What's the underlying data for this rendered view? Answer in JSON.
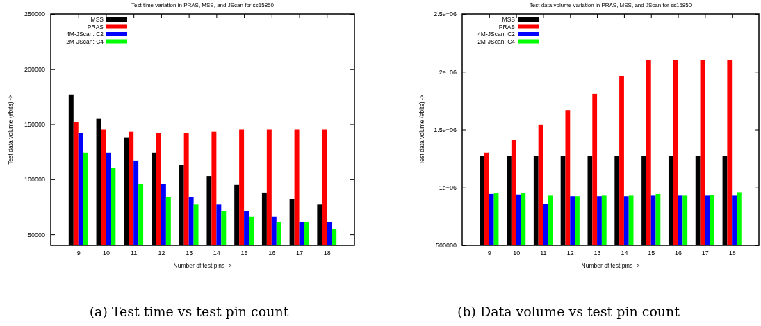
{
  "chart_data": [
    {
      "type": "bar",
      "title": "Test time variation in PRAS, MSS, and JScan for ss15850",
      "xlabel": "Number of test pins ->",
      "ylabel": "Test data volume (#bits) ->",
      "categories": [
        "9",
        "10",
        "11",
        "12",
        "13",
        "14",
        "15",
        "16",
        "17",
        "18"
      ],
      "ylim": [
        40000,
        250000
      ],
      "yticks": [
        50000,
        100000,
        150000,
        200000,
        250000
      ],
      "legend": "top left",
      "annotations": [
        "(a) Test time vs test pin count"
      ],
      "series": [
        {
          "name": "MSS",
          "color": "#000000",
          "values": [
            177000,
            155000,
            138000,
            124000,
            113000,
            103000,
            95000,
            88000,
            82000,
            77000
          ]
        },
        {
          "name": "PRAS",
          "color": "#ff0000",
          "values": [
            152000,
            145000,
            143000,
            142000,
            142000,
            143000,
            145000,
            145000,
            145000,
            145000
          ]
        },
        {
          "name": "4M-JScan: C2",
          "color": "#0000ff",
          "values": [
            142000,
            124000,
            117000,
            96000,
            84000,
            77000,
            71000,
            66000,
            61000,
            61000
          ]
        },
        {
          "name": "2M-JScan: C4",
          "color": "#00ff00",
          "values": [
            124000,
            110000,
            96000,
            84000,
            77000,
            71000,
            66000,
            61000,
            61000,
            55000
          ]
        }
      ]
    },
    {
      "type": "bar",
      "title": "Test data volume variation in PRAS, MSS, and JScan for ss15850",
      "xlabel": "Number of test pins ->",
      "ylabel": "Test data volume (#bits) ->",
      "categories": [
        "9",
        "10",
        "11",
        "12",
        "13",
        "14",
        "15",
        "16",
        "17",
        "18"
      ],
      "ylim": [
        500000,
        2500000
      ],
      "yticks": [
        500000,
        {
          "value": 1000000,
          "label": "1e+06"
        },
        {
          "value": 1500000,
          "label": "1.5e+06"
        },
        {
          "value": 2000000,
          "label": "2e+06"
        },
        {
          "value": 2500000,
          "label": "2.5e+06"
        }
      ],
      "legend": "top left",
      "annotations": [
        "(b) Data volume vs test pin count"
      ],
      "series": [
        {
          "name": "MSS",
          "color": "#000000",
          "values": [
            1270000,
            1270000,
            1270000,
            1270000,
            1270000,
            1270000,
            1270000,
            1270000,
            1270000,
            1270000
          ]
        },
        {
          "name": "PRAS",
          "color": "#ff0000",
          "values": [
            1300000,
            1410000,
            1540000,
            1670000,
            1810000,
            1960000,
            2100000,
            2100000,
            2100000,
            2100000
          ]
        },
        {
          "name": "4M-JScan: C2",
          "color": "#0000ff",
          "values": [
            945000,
            940000,
            860000,
            925000,
            925000,
            925000,
            930000,
            930000,
            930000,
            930000
          ]
        },
        {
          "name": "2M-JScan: C4",
          "color": "#00ff00",
          "values": [
            950000,
            950000,
            930000,
            925000,
            930000,
            930000,
            945000,
            930000,
            935000,
            960000
          ]
        }
      ]
    }
  ]
}
